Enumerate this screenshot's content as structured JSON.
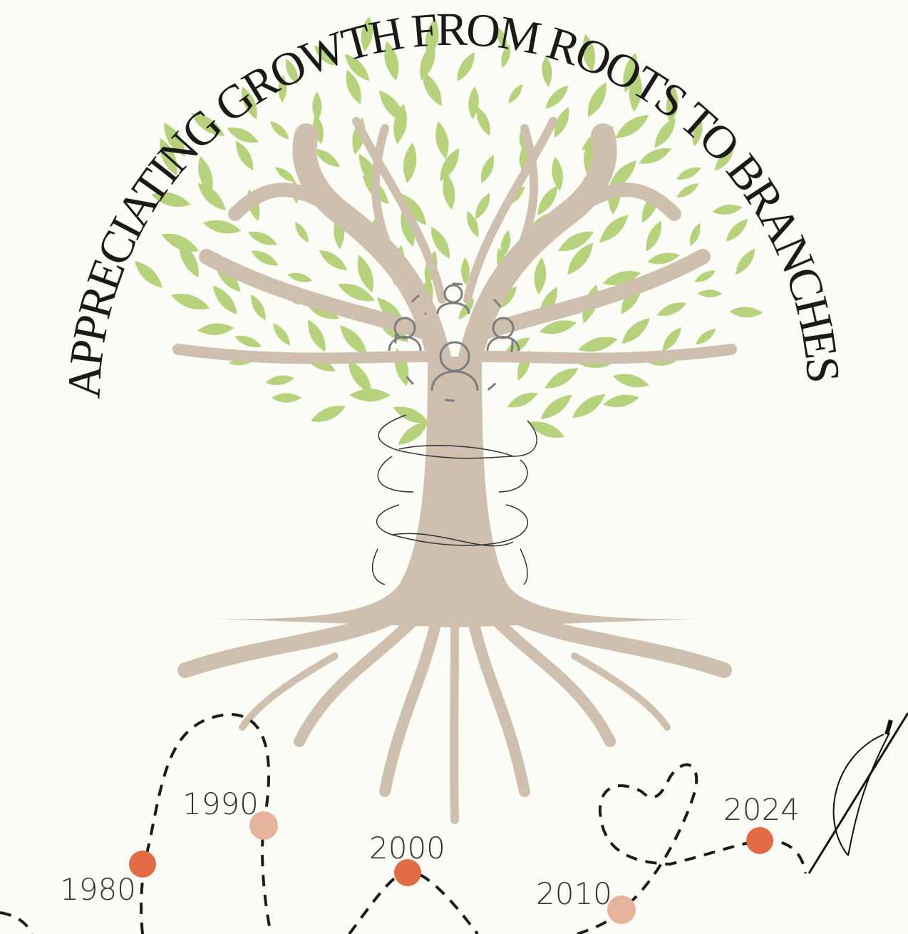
{
  "title": "APPRECIATING GROWTH FROM ROOTS TO BRANCHES",
  "timeline": {
    "points": [
      {
        "label": "1980"
      },
      {
        "label": "1990"
      },
      {
        "label": "2000"
      },
      {
        "label": "2010"
      },
      {
        "label": "2024"
      }
    ]
  }
}
